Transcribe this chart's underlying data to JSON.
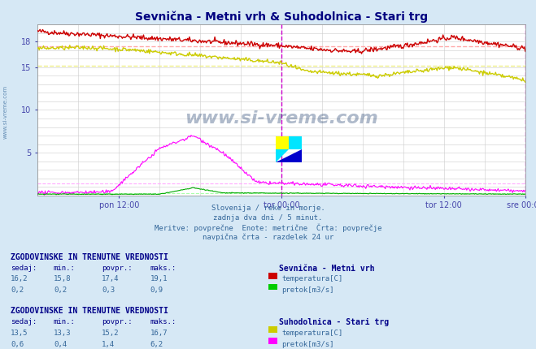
{
  "title": "Sevnična - Metni vrh & Suhodolnica - Stari trg",
  "bg_color": "#d6e8f5",
  "plot_bg_color": "#ffffff",
  "grid_color": "#cccccc",
  "xlabel_color": "#4444aa",
  "title_color": "#000080",
  "text_color": "#336699",
  "x_ticks_labels": [
    "pon 12:00",
    "tor 00:00",
    "tor 12:00",
    "sre 00:00"
  ],
  "x_ticks_pos": [
    0.167,
    0.5,
    0.833,
    1.0
  ],
  "y_min": 0,
  "y_max": 20,
  "avg_red": 17.4,
  "avg_yellow": 15.2,
  "avg_magenta": 1.4,
  "avg_green": 0.3,
  "n_points": 576,
  "watermark_text": "www.si-vreme.com",
  "footer_lines": [
    "Slovenija / reke in morje.",
    "zadnja dva dni / 5 minut.",
    "Meritve: povprečne  Enote: metrične  Črta: povprečje",
    "navpična črta - razdelek 24 ur"
  ],
  "section1_header": "ZGODOVINSKE IN TRENUTNE VREDNOSTI",
  "section1_station": "Sevnična - Metni vrh",
  "section1_cols": [
    "sedaj:",
    "min.:",
    "povpr.:",
    "maks.:"
  ],
  "section1_row1": [
    "16,2",
    "15,8",
    "17,4",
    "19,1"
  ],
  "section1_row2": [
    "0,2",
    "0,2",
    "0,3",
    "0,9"
  ],
  "section1_legend": [
    [
      "temperatura[C]",
      "#cc0000"
    ],
    [
      "pretok[m3/s]",
      "#00cc00"
    ]
  ],
  "section2_header": "ZGODOVINSKE IN TRENUTNE VREDNOSTI",
  "section2_station": "Suhodolnica - Stari trg",
  "section2_cols": [
    "sedaj:",
    "min.:",
    "povpr.:",
    "maks.:"
  ],
  "section2_row1": [
    "13,5",
    "13,3",
    "15,2",
    "16,7"
  ],
  "section2_row2": [
    "0,6",
    "0,4",
    "1,4",
    "6,2"
  ],
  "section2_legend": [
    [
      "temperatura[C]",
      "#cccc00"
    ],
    [
      "pretok[m3/s]",
      "#ff00ff"
    ]
  ],
  "line_colors": {
    "red_temp": "#cc0000",
    "green_flow": "#00aa00",
    "yellow_temp": "#cccc00",
    "magenta_flow": "#ff00ff"
  },
  "vline_color": "#cc00cc",
  "hline_red_color": "#ffaaaa",
  "hline_yellow_color": "#eeee88"
}
